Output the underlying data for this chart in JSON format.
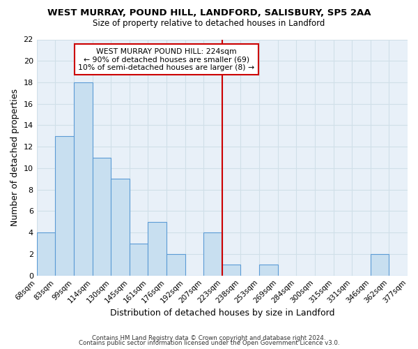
{
  "title": "WEST MURRAY, POUND HILL, LANDFORD, SALISBURY, SP5 2AA",
  "subtitle": "Size of property relative to detached houses in Landford",
  "xlabel": "Distribution of detached houses by size in Landford",
  "ylabel": "Number of detached properties",
  "labels": [
    "68sqm",
    "83sqm",
    "99sqm",
    "114sqm",
    "130sqm",
    "145sqm",
    "161sqm",
    "176sqm",
    "192sqm",
    "207sqm",
    "223sqm",
    "238sqm",
    "253sqm",
    "269sqm",
    "284sqm",
    "300sqm",
    "315sqm",
    "331sqm",
    "346sqm",
    "362sqm",
    "377sqm"
  ],
  "values": [
    4,
    13,
    18,
    11,
    9,
    3,
    5,
    2,
    0,
    4,
    1,
    0,
    1,
    0,
    0,
    0,
    0,
    0,
    2,
    0
  ],
  "bar_color": "#c8dff0",
  "bar_edge_color": "#5b9bd5",
  "grid_color": "#d0dfe8",
  "marker_line_index": 10,
  "annotation_title": "WEST MURRAY POUND HILL: 224sqm",
  "annotation_line1": "← 90% of detached houses are smaller (69)",
  "annotation_line2": "10% of semi-detached houses are larger (8) →",
  "annotation_box_facecolor": "#ffffff",
  "annotation_box_edgecolor": "#cc0000",
  "footer_line1": "Contains HM Land Registry data © Crown copyright and database right 2024.",
  "footer_line2": "Contains public sector information licensed under the Open Government Licence v3.0.",
  "ylim": [
    0,
    22
  ],
  "yticks": [
    0,
    2,
    4,
    6,
    8,
    10,
    12,
    14,
    16,
    18,
    20,
    22
  ],
  "bg_color": "#e8f0f8"
}
